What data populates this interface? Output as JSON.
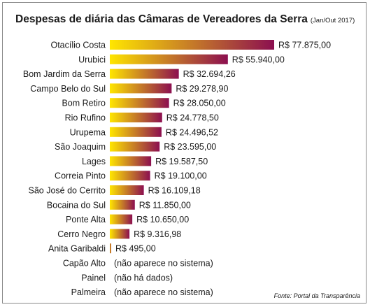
{
  "chart_data": {
    "type": "bar",
    "orientation": "horizontal",
    "title": "Despesas de diária das Câmaras de Vereadores da Serra",
    "subtitle": "(Jan/Out 2017)",
    "source": "Fonte: Portal da Transparência",
    "categories": [
      "Otacílio Costa",
      "Urubici",
      "Bom Jardim da Serra",
      "Campo Belo do Sul",
      "Bom Retiro",
      "Rio Rufino",
      "Urupema",
      "São Joaquim",
      "Lages",
      "Correia Pinto",
      "São José do Cerrito",
      "Bocaina do Sul",
      "Ponte Alta",
      "Cerro Negro",
      "Anita Garibaldi",
      "Capão Alto",
      "Painel",
      "Palmeira"
    ],
    "values": [
      77875.0,
      55940.0,
      32694.26,
      29278.9,
      28050.0,
      24778.5,
      24496.52,
      23595.0,
      19587.5,
      19100.0,
      16109.18,
      11850.0,
      10650.0,
      9316.98,
      495.0,
      null,
      null,
      null
    ],
    "data_labels": [
      "R$ 77.875,00",
      "R$ 55.940,00",
      "R$ 32.694,26",
      "R$ 29.278,90",
      "R$ 28.050,00",
      "R$ 24.778,50",
      "R$ 24.496,52",
      "R$ 23.595,00",
      "R$ 19.587,50",
      "R$ 19.100,00",
      "R$ 16.109,18",
      "R$ 11.850,00",
      "R$ 10.650,00",
      "R$ 9.316,98",
      "R$ 495,00",
      "(não aparece no sistema)",
      "(não há dados)",
      "(não aparece no sistema)"
    ],
    "gradient_colors": [
      "#ffe600",
      "#8c0f50"
    ],
    "grid": false,
    "legend": false
  }
}
